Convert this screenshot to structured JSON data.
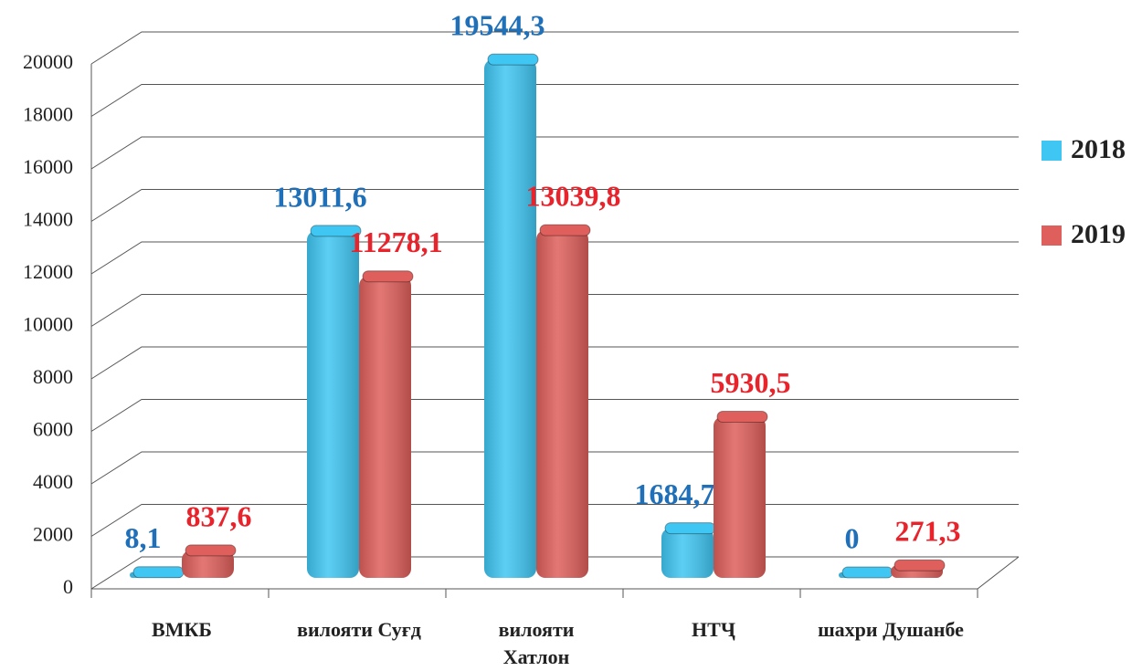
{
  "chart_data": {
    "type": "bar",
    "categories": [
      "ВМКБ",
      "вилояти Суғд",
      "вилояти Хатлон",
      "НТҶ",
      "шахри Душанбе"
    ],
    "series": [
      {
        "name": "2018",
        "color": "#40c6f2",
        "label_color": "#1f70b8",
        "values": [
          8.1,
          13011.6,
          19544.3,
          1684.7,
          0
        ],
        "value_labels": [
          "8,1",
          "13011,6",
          "19544,3",
          "1684,7",
          "0"
        ]
      },
      {
        "name": "2019",
        "color": "#de5f5b",
        "label_color": "#e8232b",
        "values": [
          837.6,
          11278.1,
          13039.8,
          5930.5,
          271.3
        ],
        "value_labels": [
          "837,6",
          "11278,1",
          "13039,8",
          "5930,5",
          "271,3"
        ]
      }
    ],
    "ylim": [
      0,
      20000
    ],
    "yticks": [
      0,
      2000,
      4000,
      6000,
      8000,
      10000,
      12000,
      14000,
      16000,
      18000,
      20000
    ],
    "grid": true,
    "legend": "right"
  }
}
